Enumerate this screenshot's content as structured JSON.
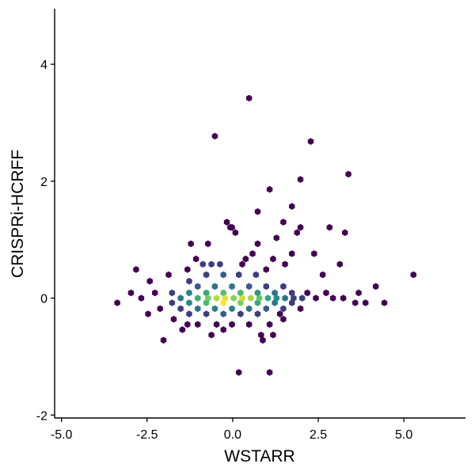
{
  "chart_data": {
    "type": "heatmap",
    "subtype": "hexbin",
    "xlabel": "WSTARR",
    "ylabel": "CRISPRi-HCRFF",
    "xlim": [
      -5.2,
      6.8
    ],
    "ylim": [
      -2.05,
      4.95
    ],
    "xticks": [
      -5.0,
      -2.5,
      0.0,
      2.5,
      5.0
    ],
    "xtick_labels": [
      "-5.0",
      "-2.5",
      "0.0",
      "2.5",
      "5.0"
    ],
    "yticks": [
      -2,
      0,
      2,
      4
    ],
    "ytick_labels": [
      "-2",
      "0",
      "2",
      "4"
    ],
    "grid": false,
    "legend": "none",
    "colormap": [
      "#440154",
      "#3b528b",
      "#21918c",
      "#5ec962",
      "#fde725"
    ],
    "count_range": [
      1,
      40
    ],
    "points": [
      {
        "x": 0.48,
        "y": 3.42,
        "count": 1
      },
      {
        "x": -0.52,
        "y": 2.77,
        "count": 1
      },
      {
        "x": 2.28,
        "y": 2.68,
        "count": 1
      },
      {
        "x": 3.38,
        "y": 2.12,
        "count": 1
      },
      {
        "x": 1.98,
        "y": 2.03,
        "count": 1
      },
      {
        "x": 1.08,
        "y": 1.86,
        "count": 1
      },
      {
        "x": 1.73,
        "y": 1.57,
        "count": 1
      },
      {
        "x": 0.73,
        "y": 1.48,
        "count": 1
      },
      {
        "x": 1.48,
        "y": 1.3,
        "count": 1
      },
      {
        "x": -0.17,
        "y": 1.3,
        "count": 1
      },
      {
        "x": -0.02,
        "y": 1.21,
        "count": 1
      },
      {
        "x": 1.98,
        "y": 1.21,
        "count": 1
      },
      {
        "x": 2.83,
        "y": 1.21,
        "count": 1
      },
      {
        "x": 3.28,
        "y": 1.12,
        "count": 1
      },
      {
        "x": 1.88,
        "y": 1.12,
        "count": 1
      },
      {
        "x": 0.08,
        "y": 1.12,
        "count": 1
      },
      {
        "x": -0.07,
        "y": 1.21,
        "count": 1
      },
      {
        "x": 1.28,
        "y": 1.03,
        "count": 1
      },
      {
        "x": -1.22,
        "y": 0.93,
        "count": 1
      },
      {
        "x": -0.72,
        "y": 0.93,
        "count": 1
      },
      {
        "x": 0.73,
        "y": 0.93,
        "count": 1
      },
      {
        "x": 1.73,
        "y": 0.76,
        "count": 1
      },
      {
        "x": 2.38,
        "y": 0.76,
        "count": 1
      },
      {
        "x": 3.13,
        "y": 0.58,
        "count": 1
      },
      {
        "x": 1.53,
        "y": 0.58,
        "count": 1
      },
      {
        "x": -2.82,
        "y": 0.49,
        "count": 1
      },
      {
        "x": 5.28,
        "y": 0.4,
        "count": 1
      },
      {
        "x": 4.18,
        "y": 0.2,
        "count": 1
      },
      {
        "x": 3.68,
        "y": 0.09,
        "count": 1
      },
      {
        "x": -3.37,
        "y": -0.08,
        "count": 1
      },
      {
        "x": -2.97,
        "y": 0.09,
        "count": 1
      },
      {
        "x": -2.67,
        "y": 0.0,
        "count": 1
      },
      {
        "x": -2.47,
        "y": -0.27,
        "count": 1
      },
      {
        "x": -2.02,
        "y": -0.72,
        "count": 1
      },
      {
        "x": -1.47,
        "y": -0.54,
        "count": 1
      },
      {
        "x": -0.62,
        "y": -0.63,
        "count": 1
      },
      {
        "x": -0.27,
        "y": -0.54,
        "count": 1
      },
      {
        "x": 0.83,
        "y": -0.63,
        "count": 1
      },
      {
        "x": 0.88,
        "y": -0.72,
        "count": 1
      },
      {
        "x": 1.18,
        "y": -0.63,
        "count": 1
      },
      {
        "x": 0.18,
        "y": -1.27,
        "count": 1
      },
      {
        "x": 1.08,
        "y": -1.27,
        "count": 1
      },
      {
        "x": 4.43,
        "y": -0.08,
        "count": 1
      },
      {
        "x": 3.88,
        "y": -0.08,
        "count": 1
      },
      {
        "x": 3.58,
        "y": -0.08,
        "count": 1
      },
      {
        "x": 2.73,
        "y": 0.09,
        "count": 1
      },
      {
        "x": 2.18,
        "y": 0.09,
        "count": 1
      },
      {
        "x": 1.48,
        "y": -0.36,
        "count": 1
      },
      {
        "x": 1.38,
        "y": -0.27,
        "count": 1
      },
      {
        "x": 1.08,
        "y": -0.45,
        "count": 1
      },
      {
        "x": -0.47,
        "y": -0.45,
        "count": 1
      },
      {
        "x": -1.32,
        "y": -0.45,
        "count": 1
      },
      {
        "x": -1.72,
        "y": -0.36,
        "count": 1
      },
      {
        "x": -2.12,
        "y": -0.18,
        "count": 1
      },
      {
        "x": -2.27,
        "y": 0.09,
        "count": 1
      },
      {
        "x": -2.42,
        "y": 0.29,
        "count": 1
      },
      {
        "x": -1.87,
        "y": 0.4,
        "count": 1
      },
      {
        "x": -1.32,
        "y": 0.49,
        "count": 1
      },
      {
        "x": -1.07,
        "y": 0.67,
        "count": 1
      },
      {
        "x": 0.58,
        "y": 0.76,
        "count": 1
      },
      {
        "x": 0.38,
        "y": 0.67,
        "count": 1
      },
      {
        "x": 1.18,
        "y": 0.67,
        "count": 1
      },
      {
        "x": 0.98,
        "y": 0.49,
        "count": 1
      },
      {
        "x": 2.63,
        "y": 0.4,
        "count": 1
      },
      {
        "x": -0.87,
        "y": 0.58,
        "count": 2
      },
      {
        "x": -0.62,
        "y": 0.58,
        "count": 2
      },
      {
        "x": -0.37,
        "y": 0.58,
        "count": 2
      },
      {
        "x": 0.28,
        "y": 0.58,
        "count": 1
      },
      {
        "x": -1.27,
        "y": 0.29,
        "count": 2
      },
      {
        "x": -0.77,
        "y": 0.4,
        "count": 2
      },
      {
        "x": -0.27,
        "y": 0.4,
        "count": 3
      },
      {
        "x": 0.18,
        "y": 0.4,
        "count": 2
      },
      {
        "x": 0.68,
        "y": 0.4,
        "count": 2
      },
      {
        "x": -1.02,
        "y": 0.2,
        "count": 3
      },
      {
        "x": -0.52,
        "y": 0.2,
        "count": 4
      },
      {
        "x": -0.02,
        "y": 0.2,
        "count": 4
      },
      {
        "x": 0.48,
        "y": 0.2,
        "count": 3
      },
      {
        "x": 0.98,
        "y": 0.2,
        "count": 2
      },
      {
        "x": 1.48,
        "y": 0.2,
        "count": 2
      },
      {
        "x": -1.77,
        "y": 0.09,
        "count": 2
      },
      {
        "x": -1.27,
        "y": 0.09,
        "count": 5
      },
      {
        "x": -0.77,
        "y": 0.09,
        "count": 9
      },
      {
        "x": -0.27,
        "y": 0.09,
        "count": 14
      },
      {
        "x": 0.23,
        "y": 0.09,
        "count": 12
      },
      {
        "x": 0.73,
        "y": 0.09,
        "count": 7
      },
      {
        "x": 1.23,
        "y": 0.09,
        "count": 4
      },
      {
        "x": 1.73,
        "y": 0.09,
        "count": 2
      },
      {
        "x": -1.52,
        "y": 0.0,
        "count": 4
      },
      {
        "x": -1.02,
        "y": 0.0,
        "count": 10
      },
      {
        "x": -0.72,
        "y": 0.0,
        "count": 18
      },
      {
        "x": -0.47,
        "y": 0.0,
        "count": 26
      },
      {
        "x": -0.22,
        "y": 0.0,
        "count": 34
      },
      {
        "x": 0.03,
        "y": 0.0,
        "count": 20
      },
      {
        "x": 0.28,
        "y": 0.0,
        "count": 30
      },
      {
        "x": 0.53,
        "y": 0.0,
        "count": 24
      },
      {
        "x": 0.78,
        "y": 0.0,
        "count": 16
      },
      {
        "x": 1.03,
        "y": 0.0,
        "count": 9
      },
      {
        "x": 1.28,
        "y": 0.0,
        "count": 6
      },
      {
        "x": 1.53,
        "y": 0.0,
        "count": 4
      },
      {
        "x": 1.78,
        "y": 0.0,
        "count": 2
      },
      {
        "x": 2.03,
        "y": 0.0,
        "count": 2
      },
      {
        "x": 2.43,
        "y": 0.0,
        "count": 1
      },
      {
        "x": 2.93,
        "y": 0.0,
        "count": 1
      },
      {
        "x": 3.23,
        "y": 0.0,
        "count": 1
      },
      {
        "x": -0.27,
        "y": -0.08,
        "count": 40
      },
      {
        "x": -1.77,
        "y": -0.08,
        "count": 2
      },
      {
        "x": -1.27,
        "y": -0.08,
        "count": 6
      },
      {
        "x": -0.77,
        "y": -0.08,
        "count": 12
      },
      {
        "x": 0.23,
        "y": -0.08,
        "count": 18
      },
      {
        "x": 0.73,
        "y": -0.08,
        "count": 9
      },
      {
        "x": 1.23,
        "y": -0.08,
        "count": 4
      },
      {
        "x": 1.73,
        "y": -0.08,
        "count": 2
      },
      {
        "x": -1.52,
        "y": -0.18,
        "count": 2
      },
      {
        "x": -1.02,
        "y": -0.18,
        "count": 4
      },
      {
        "x": -0.52,
        "y": -0.18,
        "count": 5
      },
      {
        "x": -0.02,
        "y": -0.18,
        "count": 5
      },
      {
        "x": 0.48,
        "y": -0.18,
        "count": 4
      },
      {
        "x": 0.98,
        "y": -0.18,
        "count": 3
      },
      {
        "x": 1.48,
        "y": -0.18,
        "count": 2
      },
      {
        "x": 1.98,
        "y": -0.18,
        "count": 1
      },
      {
        "x": -1.27,
        "y": -0.27,
        "count": 2
      },
      {
        "x": -0.77,
        "y": -0.27,
        "count": 2
      },
      {
        "x": -0.27,
        "y": -0.27,
        "count": 3
      },
      {
        "x": 0.23,
        "y": -0.27,
        "count": 2
      },
      {
        "x": 0.73,
        "y": -0.27,
        "count": 2
      },
      {
        "x": -1.02,
        "y": -0.45,
        "count": 1
      },
      {
        "x": -0.02,
        "y": -0.45,
        "count": 1
      },
      {
        "x": 0.48,
        "y": -0.45,
        "count": 1
      }
    ]
  }
}
